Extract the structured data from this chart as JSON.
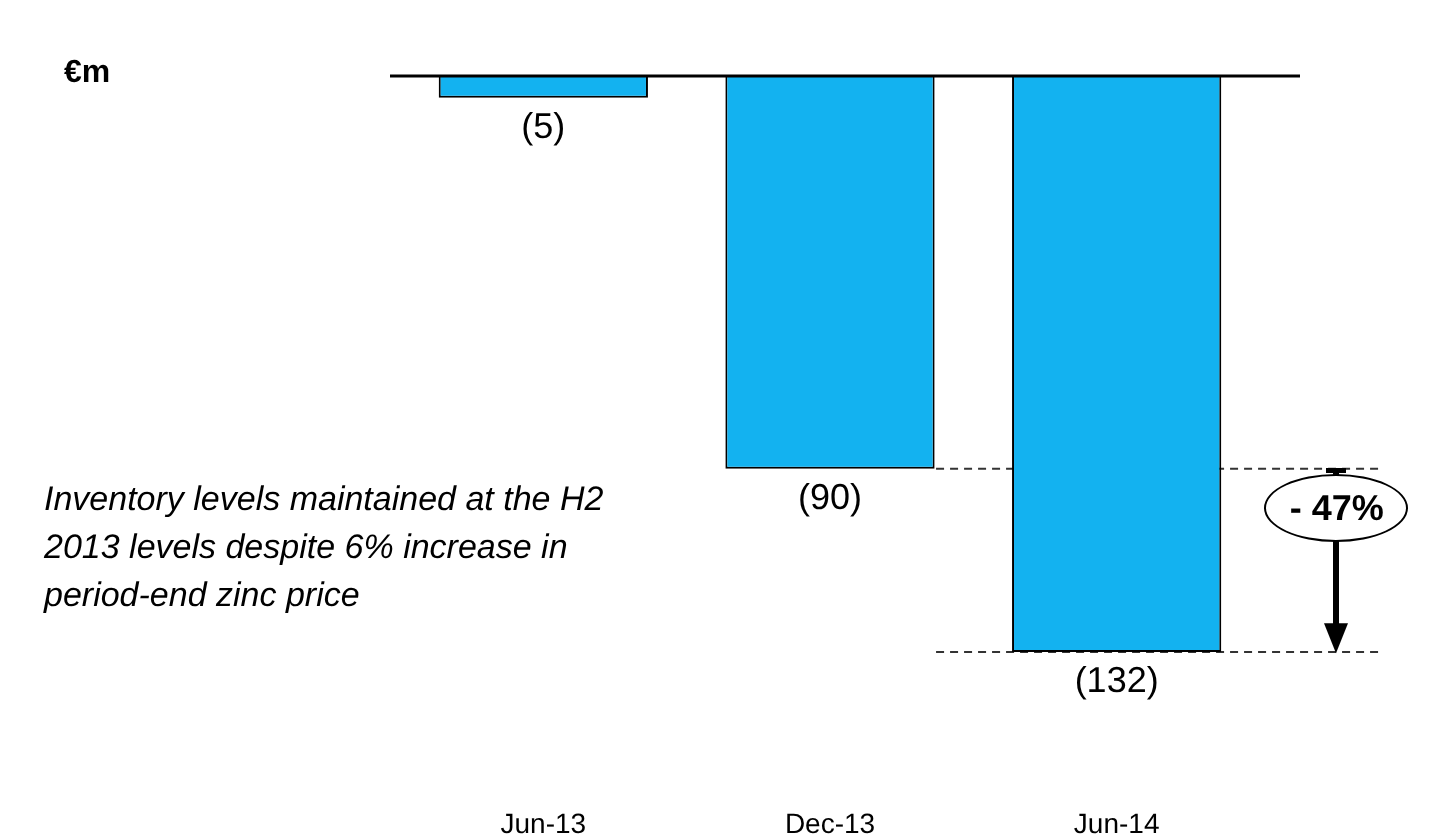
{
  "chart_data": {
    "type": "bar",
    "categories": [
      "Jun-13",
      "Dec-13",
      "Jun-14"
    ],
    "values": [
      -5,
      -90,
      -132
    ],
    "color": "#13b2f0",
    "value_labels": [
      "(5)",
      "(90)",
      "(132)"
    ],
    "ref_lines": [
      {
        "axis": "y",
        "value": -90,
        "line_style": "dashed"
      },
      {
        "axis": "y",
        "value": -132,
        "line_style": "dashed"
      }
    ],
    "annotations": [
      "€m",
      "Inventory levels maintained at the H2 2013 levels despite 6% increase in period-end zinc price",
      "- 47%"
    ],
    "grid": false,
    "legend": false
  }
}
